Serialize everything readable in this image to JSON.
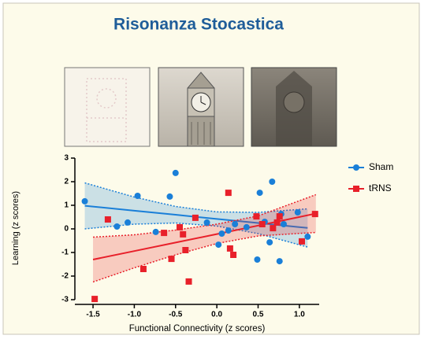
{
  "chart_data": {
    "type": "scatter",
    "title": "Risonanza Stocastica",
    "xlabel": "Functional Connectivity (z scores)",
    "ylabel": "Learning (z scores)",
    "xlim": [
      -1.72,
      1.24
    ],
    "ylim": [
      -3,
      3
    ],
    "xticks": [
      -1.5,
      {
        "value": -1,
        "label": "-1.0"
      },
      -0.5,
      {
        "value": 0,
        "label": "0.0"
      },
      0.5,
      {
        "value": 1,
        "label": "1.0"
      }
    ],
    "yticks": [
      -3,
      -2,
      -1,
      0,
      1,
      2,
      3
    ],
    "legend": "right",
    "series": [
      {
        "name": "Sham",
        "color": "#1a7fd8",
        "marker": "circle",
        "x": [
          -1.6,
          -0.96,
          -1.21,
          -1.08,
          -0.5,
          -0.57,
          -0.74,
          -0.12,
          0.06,
          0.14,
          0.22,
          0.02,
          0.36,
          0.52,
          0.67,
          0.58,
          0.64,
          0.78,
          0.49,
          0.76,
          0.98,
          1.1,
          0.81
        ],
        "values": [
          1.17,
          1.4,
          0.1,
          0.27,
          2.37,
          1.37,
          -0.13,
          0.27,
          -0.2,
          -0.07,
          0.2,
          -0.67,
          0.07,
          1.53,
          2.0,
          0.3,
          -0.57,
          0.63,
          -1.3,
          -1.37,
          0.7,
          -0.33,
          0.2
        ],
        "fit": {
          "x": [
            -1.6,
            -1,
            -0.5,
            0,
            0.5,
            1.1
          ],
          "line": [
            0.98,
            0.77,
            0.6,
            0.42,
            0.25,
            0.04
          ],
          "upper": [
            1.95,
            1.35,
            0.95,
            0.72,
            0.7,
            0.85
          ],
          "lower": [
            0.0,
            0.2,
            0.25,
            0.12,
            -0.2,
            -0.77
          ]
        }
      },
      {
        "name": "tRNS",
        "color": "#e8202a",
        "marker": "square",
        "x": [
          -1.32,
          -1.48,
          -0.89,
          -0.64,
          -0.55,
          -0.45,
          -0.41,
          -0.38,
          -0.26,
          -0.34,
          0.14,
          0.16,
          0.2,
          0.48,
          0.55,
          0.68,
          0.73,
          0.76,
          1.03,
          1.19
        ],
        "values": [
          0.4,
          -2.97,
          -1.7,
          -0.17,
          -1.27,
          0.07,
          -0.23,
          -0.9,
          0.47,
          -2.23,
          1.53,
          -0.83,
          -1.1,
          0.53,
          0.2,
          0.03,
          0.27,
          0.53,
          -0.53,
          0.63
        ],
        "fit": {
          "x": [
            -1.5,
            -1,
            -0.5,
            0,
            0.5,
            1.2
          ],
          "line": [
            -1.3,
            -0.94,
            -0.58,
            -0.22,
            0.14,
            0.65
          ],
          "upper": [
            -0.35,
            -0.25,
            -0.05,
            0.2,
            0.55,
            1.45
          ],
          "lower": [
            -2.25,
            -1.65,
            -1.1,
            -0.62,
            -0.3,
            -0.15
          ]
        }
      }
    ]
  }
}
